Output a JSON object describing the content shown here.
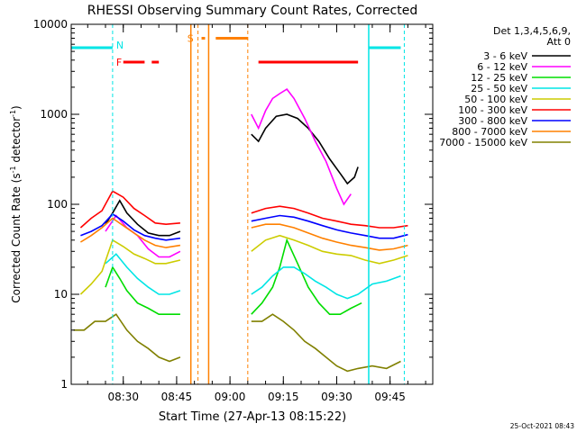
{
  "chart_data": {
    "type": "line",
    "title": "RHESSI Observing Summary Count Rates, Corrected",
    "xlabel": "Start Time (27-Apr-13 08:15:22)",
    "ylabel": "Corrected Count Rate (s⁻¹ detector⁻¹)",
    "ylabel_parts": [
      "Corrected Count Rate (s",
      "-1",
      " detector",
      "-1",
      ")"
    ],
    "y_scale": "log",
    "ylim": [
      1,
      10000
    ],
    "xlim": [
      "08:15:22",
      "09:57:00"
    ],
    "x_ticks": [
      "08:30",
      "08:45",
      "09:00",
      "09:15",
      "09:30",
      "09:45"
    ],
    "y_ticks": [
      "1",
      "10",
      "100",
      "1000",
      "10000"
    ],
    "footer": "25-Oct-2021 08:43",
    "legend_header": [
      "Det 1,3,4,5,6,9,",
      "Att 0"
    ],
    "legend": [
      {
        "label": "3 - 6 keV",
        "color": "#000000"
      },
      {
        "label": "6 - 12 keV",
        "color": "#ff00ff"
      },
      {
        "label": "12 - 25 keV",
        "color": "#00dd00"
      },
      {
        "label": "25 - 50 keV",
        "color": "#00e5e5"
      },
      {
        "label": "50 - 100 keV",
        "color": "#cccc00"
      },
      {
        "label": "100 - 300 keV",
        "color": "#ff0000"
      },
      {
        "label": "300 - 800 keV",
        "color": "#0000ff"
      },
      {
        "label": "800 - 7000 keV",
        "color": "#ff8000"
      },
      {
        "label": "7000 - 15000 keV",
        "color": "#808000"
      }
    ],
    "flags": [
      {
        "letter": "N",
        "color": "#00e5e5"
      },
      {
        "letter": "F",
        "color": "#ff0000"
      },
      {
        "letter": "S",
        "color": "#ff8000"
      }
    ],
    "series": [
      {
        "name": "3 - 6 keV",
        "color": "#000000",
        "seg1": {
          "x": [
            "08:25",
            "08:27",
            "08:29",
            "08:31",
            "08:34",
            "08:37",
            "08:40",
            "08:43",
            "08:46"
          ],
          "y": [
            60,
            80,
            110,
            80,
            60,
            48,
            45,
            45,
            50
          ]
        },
        "seg2": {
          "x": [
            "09:06",
            "09:08",
            "09:10",
            "09:13",
            "09:16",
            "09:19",
            "09:22",
            "09:25",
            "09:28",
            "09:31",
            "09:33",
            "09:35",
            "09:36"
          ],
          "y": [
            600,
            500,
            700,
            950,
            1000,
            900,
            700,
            500,
            320,
            220,
            170,
            200,
            260
          ]
        }
      },
      {
        "name": "6 - 12 keV",
        "color": "#ff00ff",
        "seg1": {
          "x": [
            "08:25",
            "08:28",
            "08:31",
            "08:34",
            "08:37",
            "08:40",
            "08:43",
            "08:46"
          ],
          "y": [
            50,
            75,
            55,
            45,
            32,
            26,
            26,
            30
          ]
        },
        "seg2": {
          "x": [
            "09:06",
            "09:08",
            "09:10",
            "09:12",
            "09:14",
            "09:16",
            "09:18",
            "09:21",
            "09:24",
            "09:27",
            "09:30",
            "09:32",
            "09:34"
          ],
          "y": [
            1000,
            700,
            1100,
            1500,
            1700,
            1900,
            1500,
            900,
            500,
            300,
            150,
            100,
            130
          ]
        }
      },
      {
        "name": "12 - 25 keV",
        "color": "#00dd00",
        "seg1": {
          "x": [
            "08:25",
            "08:27",
            "08:29",
            "08:31",
            "08:34",
            "08:37",
            "08:40",
            "08:43",
            "08:46"
          ],
          "y": [
            12,
            20,
            15,
            11,
            8,
            7,
            6,
            6,
            6
          ]
        },
        "seg2": {
          "x": [
            "09:06",
            "09:09",
            "09:12",
            "09:14",
            "09:16",
            "09:19",
            "09:22",
            "09:25",
            "09:28",
            "09:31",
            "09:34",
            "09:37"
          ],
          "y": [
            6,
            8,
            12,
            20,
            40,
            22,
            12,
            8,
            6,
            6,
            7,
            8
          ]
        }
      },
      {
        "name": "25 - 50 keV",
        "color": "#00e5e5",
        "seg1": {
          "x": [
            "08:25",
            "08:28",
            "08:31",
            "08:34",
            "08:37",
            "08:40",
            "08:43",
            "08:46"
          ],
          "y": [
            22,
            28,
            20,
            15,
            12,
            10,
            10,
            11
          ]
        },
        "seg2": {
          "x": [
            "09:06",
            "09:09",
            "09:12",
            "09:15",
            "09:18",
            "09:21",
            "09:24",
            "09:27",
            "09:30",
            "09:33",
            "09:36",
            "09:40",
            "09:44",
            "09:48"
          ],
          "y": [
            10,
            12,
            16,
            20,
            20,
            17,
            14,
            12,
            10,
            9,
            10,
            13,
            14,
            16
          ]
        }
      },
      {
        "name": "50 - 100 keV",
        "color": "#cccc00",
        "seg1": {
          "x": [
            "08:18",
            "08:21",
            "08:24",
            "08:27",
            "08:30",
            "08:33",
            "08:36",
            "08:39",
            "08:42",
            "08:46"
          ],
          "y": [
            10,
            13,
            18,
            40,
            34,
            28,
            25,
            22,
            22,
            24
          ]
        },
        "seg2": {
          "x": [
            "09:06",
            "09:10",
            "09:14",
            "09:18",
            "09:22",
            "09:26",
            "09:30",
            "09:34",
            "09:38",
            "09:42",
            "09:46",
            "09:50"
          ],
          "y": [
            30,
            40,
            45,
            40,
            35,
            30,
            28,
            27,
            24,
            22,
            24,
            27
          ]
        }
      },
      {
        "name": "100 - 300 keV",
        "color": "#ff0000",
        "seg1": {
          "x": [
            "08:18",
            "08:21",
            "08:24",
            "08:27",
            "08:30",
            "08:33",
            "08:36",
            "08:39",
            "08:42",
            "08:46"
          ],
          "y": [
            55,
            70,
            85,
            140,
            120,
            90,
            75,
            62,
            60,
            62
          ]
        },
        "seg2": {
          "x": [
            "09:06",
            "09:10",
            "09:14",
            "09:18",
            "09:22",
            "09:26",
            "09:30",
            "09:34",
            "09:38",
            "09:42",
            "09:46",
            "09:50"
          ],
          "y": [
            80,
            90,
            95,
            90,
            80,
            70,
            65,
            60,
            58,
            55,
            55,
            58
          ]
        }
      },
      {
        "name": "300 - 800 keV",
        "color": "#0000ff",
        "seg1": {
          "x": [
            "08:18",
            "08:21",
            "08:24",
            "08:27",
            "08:30",
            "08:33",
            "08:36",
            "08:39",
            "08:42",
            "08:46"
          ],
          "y": [
            45,
            50,
            58,
            78,
            65,
            52,
            45,
            42,
            40,
            42
          ]
        },
        "seg2": {
          "x": [
            "09:06",
            "09:10",
            "09:14",
            "09:18",
            "09:22",
            "09:26",
            "09:30",
            "09:34",
            "09:38",
            "09:42",
            "09:46",
            "09:50"
          ],
          "y": [
            65,
            70,
            75,
            72,
            65,
            58,
            52,
            48,
            45,
            42,
            42,
            46
          ]
        }
      },
      {
        "name": "800 - 7000 keV",
        "color": "#ff8000",
        "seg1": {
          "x": [
            "08:18",
            "08:21",
            "08:24",
            "08:27",
            "08:30",
            "08:33",
            "08:36",
            "08:39",
            "08:42",
            "08:46"
          ],
          "y": [
            38,
            45,
            55,
            70,
            58,
            48,
            40,
            35,
            33,
            35
          ]
        },
        "seg2": {
          "x": [
            "09:06",
            "09:10",
            "09:14",
            "09:18",
            "09:22",
            "09:26",
            "09:30",
            "09:34",
            "09:38",
            "09:42",
            "09:46",
            "09:50"
          ],
          "y": [
            55,
            60,
            60,
            55,
            48,
            42,
            38,
            35,
            33,
            31,
            32,
            35
          ]
        }
      },
      {
        "name": "7000 - 15000 keV",
        "color": "#808000",
        "seg1": {
          "x": [
            "08:16",
            "08:19",
            "08:22",
            "08:25",
            "08:28",
            "08:31",
            "08:34",
            "08:37",
            "08:40",
            "08:43",
            "08:46"
          ],
          "y": [
            4,
            4,
            5,
            5,
            6,
            4,
            3,
            2.5,
            2,
            1.8,
            2
          ]
        },
        "seg2": {
          "x": [
            "09:06",
            "09:09",
            "09:12",
            "09:15",
            "09:18",
            "09:21",
            "09:24",
            "09:27",
            "09:30",
            "09:33",
            "09:36",
            "09:40",
            "09:44",
            "09:48"
          ],
          "y": [
            5,
            5,
            6,
            5,
            4,
            3,
            2.5,
            2,
            1.6,
            1.4,
            1.5,
            1.6,
            1.5,
            1.8
          ]
        }
      }
    ]
  }
}
